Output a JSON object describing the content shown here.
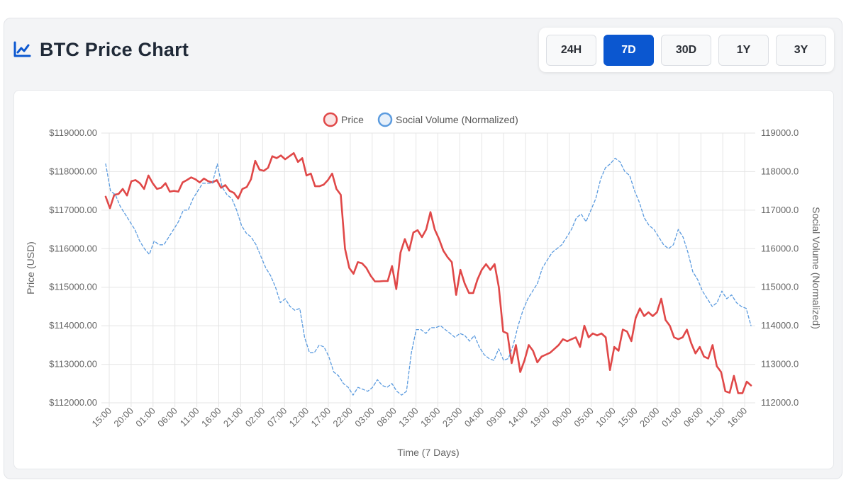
{
  "header": {
    "title": "BTC Price Chart",
    "icon": "line-chart-icon",
    "accent_color": "#0b57d0"
  },
  "range_buttons": [
    {
      "label": "24H",
      "active": false
    },
    {
      "label": "7D",
      "active": true
    },
    {
      "label": "30D",
      "active": false
    },
    {
      "label": "1Y",
      "active": false
    },
    {
      "label": "3Y",
      "active": false
    }
  ],
  "chart_data": {
    "type": "line",
    "title": "",
    "xlabel": "Time (7 Days)",
    "ylabel_left": "Price (USD)",
    "ylabel_right": "Social Volume (Normalized)",
    "ylim": [
      112000,
      119000
    ],
    "grid": true,
    "legend_position": "top-center",
    "y_ticks_left": [
      "$119000.00",
      "$118000.00",
      "$117000.00",
      "$116000.00",
      "$115000.00",
      "$114000.00",
      "$113000.00",
      "$112000.00"
    ],
    "y_ticks_right": [
      "119000.0",
      "118000.0",
      "117000.0",
      "116000.0",
      "115000.0",
      "114000.0",
      "113000.0",
      "112000.0"
    ],
    "y_tick_values": [
      119000,
      118000,
      117000,
      116000,
      115000,
      114000,
      113000,
      112000
    ],
    "x_tick_labels": [
      "15:00",
      "20:00",
      "01:00",
      "06:00",
      "11:00",
      "16:00",
      "21:00",
      "02:00",
      "07:00",
      "12:00",
      "17:00",
      "22:00",
      "03:00",
      "08:00",
      "13:00",
      "18:00",
      "23:00",
      "04:00",
      "09:00",
      "14:00",
      "19:00",
      "00:00",
      "05:00",
      "10:00",
      "15:00",
      "20:00",
      "01:00",
      "06:00",
      "11:00",
      "16:00"
    ],
    "series": [
      {
        "name": "Price",
        "color": "#e04848",
        "style": "solid",
        "values": [
          117350,
          117050,
          117400,
          117420,
          117550,
          117380,
          117750,
          117780,
          117700,
          117550,
          117900,
          117700,
          117550,
          117580,
          117700,
          117480,
          117500,
          117480,
          117720,
          117780,
          117850,
          117800,
          117720,
          117820,
          117750,
          117720,
          117780,
          117580,
          117650,
          117500,
          117450,
          117300,
          117550,
          117600,
          117800,
          118280,
          118050,
          118020,
          118100,
          118400,
          118350,
          118420,
          118320,
          118400,
          118480,
          118250,
          118350,
          117900,
          117950,
          117620,
          117620,
          117660,
          117780,
          117950,
          117550,
          117400,
          116000,
          115500,
          115350,
          115650,
          115620,
          115500,
          115300,
          115150,
          115150,
          115160,
          115160,
          115550,
          114950,
          115900,
          116250,
          115950,
          116420,
          116480,
          116300,
          116500,
          116950,
          116500,
          116250,
          115950,
          115780,
          115650,
          114800,
          115450,
          115100,
          114850,
          114850,
          115200,
          115450,
          115600,
          115450,
          115600,
          115000,
          113850,
          113800,
          113030,
          113500,
          112800,
          113100,
          113500,
          113350,
          113050,
          113200,
          113250,
          113300,
          113400,
          113500,
          113650,
          113600,
          113650,
          113700,
          113450,
          114000,
          113700,
          113800,
          113750,
          113800,
          113700,
          112850,
          113450,
          113350,
          113900,
          113850,
          113600,
          114200,
          114450,
          114250,
          114350,
          114250,
          114350,
          114700,
          114150,
          114000,
          113700,
          113650,
          113700,
          113900,
          113550,
          113280,
          113450,
          113200,
          113150,
          113500,
          112950,
          112800,
          112300,
          112260,
          112700,
          112250,
          112250,
          112550,
          112450
        ]
      },
      {
        "name": "Social Volume (Normalized)",
        "color": "#5b9bdf",
        "style": "dashed",
        "values": [
          118200,
          117500,
          117400,
          117100,
          116900,
          116700,
          116500,
          116200,
          116000,
          115850,
          116200,
          116100,
          116100,
          116300,
          116500,
          116700,
          117000,
          117000,
          117300,
          117500,
          117700,
          117700,
          117700,
          118200,
          117600,
          117400,
          117300,
          117000,
          116600,
          116400,
          116300,
          116100,
          115800,
          115500,
          115300,
          115000,
          114600,
          114700,
          114500,
          114400,
          114450,
          113700,
          113300,
          113300,
          113500,
          113450,
          113200,
          112800,
          112700,
          112500,
          112400,
          112200,
          112400,
          112350,
          112300,
          112400,
          112600,
          112450,
          112400,
          112500,
          112300,
          112200,
          112300,
          113300,
          113900,
          113900,
          113800,
          113950,
          113950,
          114000,
          113900,
          113800,
          113700,
          113800,
          113750,
          113600,
          113750,
          113450,
          113250,
          113150,
          113100,
          113400,
          113100,
          113150,
          113500,
          114000,
          114400,
          114700,
          114900,
          115100,
          115500,
          115700,
          115900,
          116000,
          116100,
          116300,
          116500,
          116800,
          116900,
          116700,
          117000,
          117300,
          117800,
          118100,
          118200,
          118350,
          118250,
          118000,
          117900,
          117500,
          117200,
          116800,
          116600,
          116500,
          116300,
          116100,
          116000,
          116100,
          116500,
          116300,
          115900,
          115400,
          115200,
          114900,
          114700,
          114500,
          114600,
          114900,
          114700,
          114800,
          114600,
          114500,
          114450,
          114000
        ]
      }
    ]
  }
}
